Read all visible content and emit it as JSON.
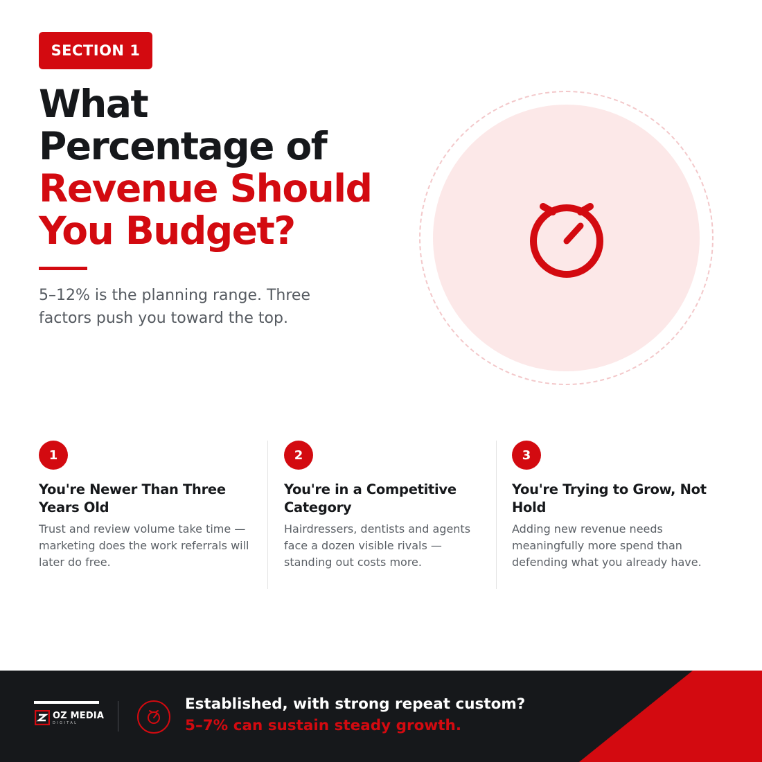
{
  "section_badge": "SECTION 1",
  "headline": {
    "line1": "What",
    "line2": "Percentage of",
    "line3": "Revenue Should",
    "line4": "You Budget?"
  },
  "subtitle": "5–12% is the planning range. Three factors push you toward the top.",
  "hero_icon": "stopwatch-icon",
  "factors": [
    {
      "number": "1",
      "title": "You're Newer Than Three Years Old",
      "body": "Trust and review volume take time — marketing does the work referrals will later do free."
    },
    {
      "number": "2",
      "title": "You're in a Competitive Category",
      "body": "Hairdressers, dentists and agents face a dozen visible rivals — standing out costs more."
    },
    {
      "number": "3",
      "title": "You're Trying to Grow, Not Hold",
      "body": "Adding new revenue needs meaningfully more spend than defending what you already have."
    }
  ],
  "footer": {
    "logo_name": "OZ MEDIA",
    "logo_sub": "DIGITAL",
    "line1": "Established, with strong repeat custom?",
    "line2": "5–7% can sustain steady growth."
  },
  "colors": {
    "accent": "#d30a10",
    "dark": "#16181b",
    "hero_fill": "#fce8e8",
    "body_text": "#5b6066"
  }
}
